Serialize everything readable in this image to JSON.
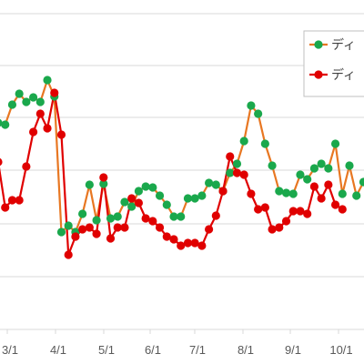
{
  "chart_data": {
    "type": "line",
    "x_tick_labels": [
      "3/1",
      "4/1",
      "5/1",
      "6/1",
      "7/1",
      "8/1",
      "9/1",
      "10/1"
    ],
    "grid": "horizontal",
    "legend_position": "top-right",
    "legend_entries": [
      "ディ",
      "ディ"
    ],
    "series": [
      {
        "legend_text": "ディ",
        "color": "#e87722",
        "marker_color": "#1aa84c",
        "values": [
          135,
          137,
          115,
          103,
          112,
          107,
          112,
          88,
          106,
          255,
          248,
          255,
          235,
          203,
          242,
          202,
          240,
          238,
          222,
          227,
          210,
          205,
          206,
          215,
          225,
          238,
          238,
          218,
          218,
          215,
          201,
          203,
          210,
          190,
          180,
          155,
          116,
          125,
          158,
          182,
          210,
          212,
          213,
          192,
          197,
          185,
          180,
          185,
          158,
          213,
          182,
          215,
          200
        ]
      },
      {
        "legend_text": "ディ",
        "color": "#e00000",
        "marker_color": "#e00000",
        "values": [
          178,
          228,
          220,
          220,
          183,
          145,
          125,
          141,
          102,
          148,
          280,
          260,
          252,
          250,
          257,
          195,
          262,
          250,
          250,
          218,
          223,
          240,
          243,
          250,
          260,
          263,
          270,
          267,
          267,
          270,
          252,
          237,
          210,
          172,
          190,
          192,
          213,
          230,
          228,
          252,
          250,
          243,
          232,
          232,
          235,
          205,
          218,
          203,
          225,
          230
        ]
      }
    ]
  }
}
